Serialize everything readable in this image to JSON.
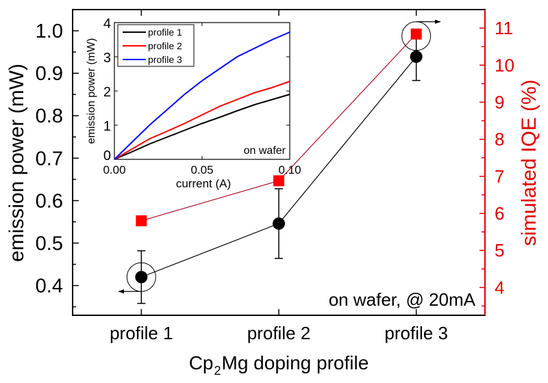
{
  "chart_data": [
    {
      "type": "scatter",
      "xlabel": "Cp2Mg doping profile",
      "xlabel_parts": {
        "pre": "Cp",
        "sub": "2",
        "post": "Mg doping profile"
      },
      "categories": [
        "profile 1",
        "profile 2",
        "profile 3"
      ],
      "ylabel": "emission power (mW)",
      "ylim": [
        0.33,
        1.05
      ],
      "yticks": [
        0.4,
        0.5,
        0.6,
        0.7,
        0.8,
        0.9,
        1.0
      ],
      "ytick_labels": [
        "0.4",
        "0.5",
        "0.6",
        "0.7",
        "0.8",
        "0.9",
        "1.0"
      ],
      "y2label": "simulated IQE (%)",
      "y2lim": [
        3.25,
        11.5
      ],
      "y2ticks": [
        4,
        5,
        6,
        7,
        8,
        9,
        10,
        11
      ],
      "y2tick_labels": [
        "4",
        "5",
        "6",
        "7",
        "8",
        "9",
        "10",
        "11"
      ],
      "annotation": "on wafer, @ 20mA",
      "series": [
        {
          "axis": "left",
          "marker": "circle",
          "color": "#000000",
          "values": [
            0.42,
            0.546,
            0.939
          ],
          "errors": [
            0.062,
            0.082,
            0.056
          ]
        },
        {
          "axis": "right",
          "marker": "square",
          "color": "#ff0000",
          "line_color": "#b0102a",
          "values": [
            5.8,
            6.88,
            10.84
          ]
        }
      ],
      "axis_colors": {
        "left": "#000000",
        "right": "#e00000"
      }
    },
    {
      "type": "line",
      "xlabel": "current (A)",
      "ylabel": "emission power (mW)",
      "xlim": [
        0,
        0.1
      ],
      "ylim": [
        0,
        4
      ],
      "xticks": [
        0,
        0.05,
        0.1
      ],
      "xtick_labels": [
        "0.00",
        "0.05",
        "0.10"
      ],
      "yticks": [
        0,
        1,
        2,
        3,
        4
      ],
      "ytick_labels": [
        "0",
        "1",
        "2",
        "3",
        "4"
      ],
      "annotation": "on wafer",
      "legend": "top-left",
      "x": [
        0,
        0.01,
        0.02,
        0.03,
        0.04,
        0.05,
        0.06,
        0.07,
        0.08,
        0.09,
        0.1
      ],
      "series": [
        {
          "name": "profile 1",
          "color": "#000000",
          "values": [
            0,
            0.22,
            0.45,
            0.65,
            0.85,
            1.05,
            1.23,
            1.42,
            1.6,
            1.75,
            1.9
          ]
        },
        {
          "name": "profile 2",
          "color": "#ff0000",
          "values": [
            0,
            0.3,
            0.6,
            0.82,
            1.05,
            1.3,
            1.55,
            1.75,
            1.95,
            2.1,
            2.28
          ]
        },
        {
          "name": "profile 3",
          "color": "#0000ff",
          "values": [
            0,
            0.5,
            1.0,
            1.45,
            1.9,
            2.3,
            2.65,
            3.0,
            3.25,
            3.5,
            3.72
          ]
        }
      ]
    }
  ]
}
